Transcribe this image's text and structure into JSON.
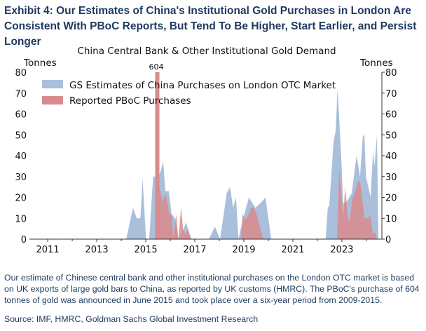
{
  "exhibit_title": "Exhibit 4: Our Estimates of China's Institutional Gold Purchases in London Are Consistent With PBoC Reports, But Tend To Be Higher, Start Earlier, and Persist Longer",
  "footnote": "Our estimate of Chinese central bank and other institutional purchases on the London OTC market is based on UK exports of large gold bars to China, as reported by UK customs (HMRC). The PBoC's purchase of 604 tonnes of gold was announced in June 2015 and took place over a six-year period from 2009-2015.",
  "source": "Source: IMF, HMRC, Goldman Sachs Global Investment Research",
  "chart_data": {
    "type": "area",
    "title": "China Central Bank & Other Institutional Gold Demand",
    "ylabel_left": "Tonnes",
    "ylabel_right": "Tonnes",
    "xlim": [
      2010.34,
      2024.63
    ],
    "ylim": [
      0,
      80
    ],
    "x_ticks": [
      2011,
      2013,
      2015,
      2017,
      2019,
      2021,
      2023
    ],
    "x_tick_labels": [
      "2011",
      "2013",
      "2015",
      "2017",
      "2019",
      "2021",
      "2023"
    ],
    "y_ticks": [
      0,
      10,
      20,
      30,
      40,
      50,
      60,
      70,
      80
    ],
    "y_tick_labels": [
      "0",
      "10",
      "20",
      "30",
      "40",
      "50",
      "60",
      "70",
      "80"
    ],
    "annotation": "604",
    "legend_position": "top-left",
    "series": [
      {
        "name": "GS Estimates of China Purchases on London OTC Market",
        "color": "#a9bfdc",
        "x": [
          2014.2,
          2014.48,
          2014.63,
          2014.78,
          2014.87,
          2015.01,
          2015.14,
          2015.3,
          2015.54,
          2015.71,
          2015.8,
          2015.94,
          2016.05,
          2016.19,
          2016.33,
          2016.48,
          2016.65,
          2016.72,
          2016.86,
          2017.58,
          2017.82,
          2018.03,
          2018.18,
          2018.3,
          2018.44,
          2018.56,
          2018.68,
          2018.78,
          2018.97,
          2019.21,
          2019.36,
          2019.47,
          2019.74,
          2019.88,
          2020.12,
          2022.34,
          2022.43,
          2022.48,
          2022.66,
          2022.75,
          2022.82,
          2022.87,
          2022.97,
          2023.05,
          2023.2,
          2023.4,
          2023.6,
          2023.74,
          2023.86,
          2023.92,
          2023.98,
          2024.08,
          2024.17,
          2024.27,
          2024.33,
          2024.43,
          2024.49
        ],
        "values": [
          0,
          15,
          10,
          10,
          29,
          0,
          0,
          30,
          30,
          37,
          23,
          23,
          12,
          10,
          0,
          3,
          8,
          5,
          0,
          0,
          6,
          0,
          12,
          22,
          25,
          15,
          20,
          0,
          10,
          20,
          17,
          15,
          18,
          20,
          0,
          0,
          16,
          15,
          47,
          52,
          72,
          62,
          40,
          17,
          18,
          22,
          40,
          30,
          50,
          49,
          30,
          25,
          20,
          42,
          35,
          50,
          0
        ]
      },
      {
        "name": "Reported PBoC Purchases",
        "color": "#d98a8c",
        "x": [
          2015.4,
          2015.41,
          2015.55,
          2015.69,
          2015.81,
          2015.96,
          2016.06,
          2016.12,
          2016.24,
          2016.33,
          2016.44,
          2016.52,
          2016.62,
          2016.72,
          2016.84,
          2018.88,
          2018.95,
          2019.07,
          2019.3,
          2019.4,
          2019.55,
          2019.78,
          2022.8,
          2022.89,
          2023.06,
          2023.13,
          2023.25,
          2023.3,
          2023.44,
          2023.53,
          2023.66,
          2023.75,
          2023.92,
          2024.08,
          2024.15,
          2024.25,
          2024.37,
          2024.42
        ],
        "values": [
          0,
          25,
          25,
          18,
          22,
          12,
          12,
          0,
          12,
          0,
          15,
          5,
          2,
          5,
          0,
          0,
          12,
          9,
          15,
          15,
          11,
          0,
          0,
          34,
          10,
          25,
          10,
          8,
          20,
          22,
          28,
          27,
          10,
          10,
          12,
          3,
          3,
          0
        ],
        "spike": {
          "x": 2015.47,
          "value": 604
        }
      }
    ]
  }
}
